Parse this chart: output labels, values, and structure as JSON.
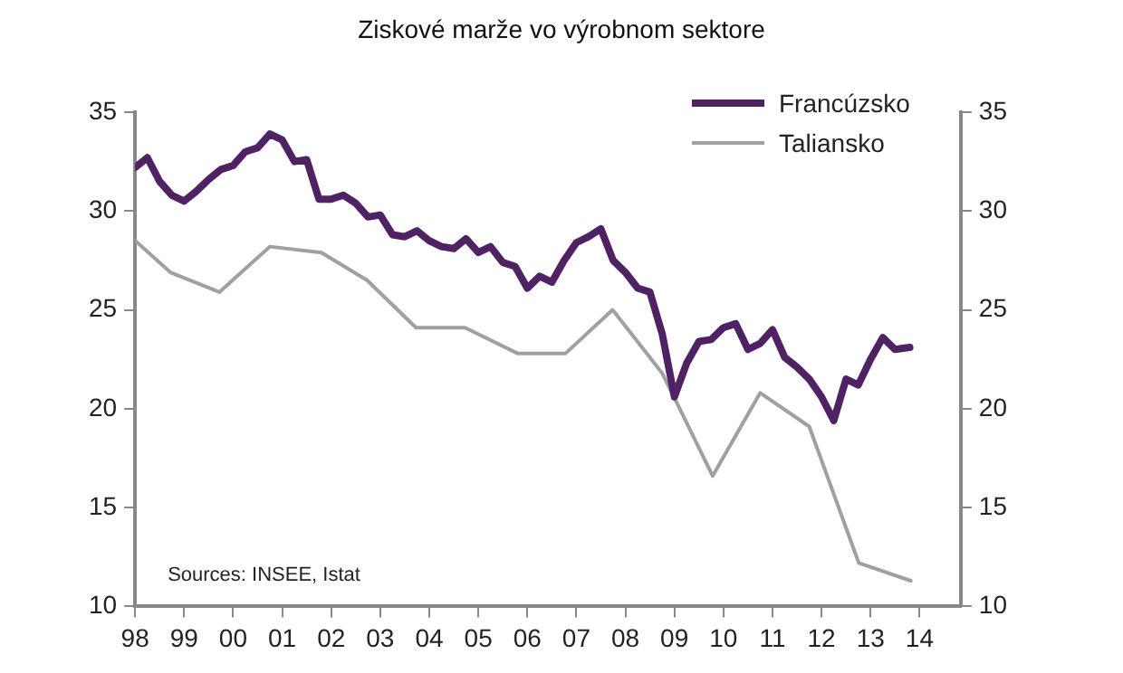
{
  "chart_data": {
    "type": "line",
    "title": "Ziskové marže vo výrobnom sektore",
    "annotations": [
      "Sources: INSEE, Istat"
    ],
    "legend": "top right",
    "grid": false,
    "marker": "none",
    "line_style": "solid",
    "xlim": [
      1998,
      2014.84
    ],
    "xticks": [
      {
        "value": 1998,
        "label": "98"
      },
      {
        "value": 1999,
        "label": "99"
      },
      {
        "value": 2000,
        "label": "00"
      },
      {
        "value": 2001,
        "label": "01"
      },
      {
        "value": 2002,
        "label": "02"
      },
      {
        "value": 2003,
        "label": "03"
      },
      {
        "value": 2004,
        "label": "04"
      },
      {
        "value": 2005,
        "label": "05"
      },
      {
        "value": 2006,
        "label": "06"
      },
      {
        "value": 2007,
        "label": "07"
      },
      {
        "value": 2008,
        "label": "08"
      },
      {
        "value": 2009,
        "label": "09"
      },
      {
        "value": 2010,
        "label": "10"
      },
      {
        "value": 2011,
        "label": "11"
      },
      {
        "value": 2012,
        "label": "12"
      },
      {
        "value": 2013,
        "label": "13"
      },
      {
        "value": 2014,
        "label": "14"
      }
    ],
    "ylim": [
      10,
      35
    ],
    "yticks": [
      10,
      15,
      20,
      25,
      30,
      35
    ],
    "y2lim": [
      10,
      35
    ],
    "y2ticks": [
      10,
      15,
      20,
      25,
      30,
      35
    ],
    "series": [
      {
        "name": "Francúzsko",
        "color": "#4f2263",
        "x": [
          1998,
          1998.25,
          1998.5,
          1998.75,
          1999,
          1999.25,
          1999.5,
          1999.75,
          2000,
          2000.25,
          2000.5,
          2000.75,
          2001,
          2001.25,
          2001.5,
          2001.75,
          2002,
          2002.25,
          2002.5,
          2002.75,
          2003,
          2003.25,
          2003.5,
          2003.75,
          2004,
          2004.25,
          2004.5,
          2004.75,
          2005,
          2005.25,
          2005.5,
          2005.75,
          2006,
          2006.25,
          2006.5,
          2006.75,
          2007,
          2007.25,
          2007.5,
          2007.75,
          2008,
          2008.25,
          2008.5,
          2008.75,
          2009,
          2009.25,
          2009.5,
          2009.75,
          2010,
          2010.25,
          2010.5,
          2010.75,
          2011,
          2011.25,
          2011.5,
          2011.75,
          2012,
          2012.25,
          2012.5,
          2012.75,
          2013,
          2013.25,
          2013.5,
          2013.8
        ],
        "values": [
          32.2,
          32.7,
          31.5,
          30.8,
          30.5,
          31.0,
          31.6,
          32.1,
          32.3,
          33.0,
          33.2,
          33.9,
          33.6,
          32.5,
          32.6,
          30.6,
          30.6,
          30.8,
          30.4,
          29.7,
          29.8,
          28.8,
          28.7,
          29.0,
          28.5,
          28.2,
          28.1,
          28.6,
          27.9,
          28.2,
          27.4,
          27.2,
          26.1,
          26.7,
          26.4,
          27.5,
          28.4,
          28.7,
          29.1,
          27.5,
          26.9,
          26.1,
          25.9,
          23.8,
          20.6,
          22.3,
          23.4,
          23.5,
          24.1,
          24.3,
          23.0,
          23.3,
          24.0,
          22.6,
          22.1,
          21.5,
          20.6,
          19.4,
          21.5,
          21.2,
          22.5,
          23.6,
          23.0,
          23.1
        ]
      },
      {
        "name": "Taliansko",
        "color": "#a0a0a0",
        "x": [
          1998,
          1998.72,
          1999.72,
          2000.75,
          2001.8,
          2002.73,
          2003.73,
          2004.73,
          2005.8,
          2006.78,
          2007.74,
          2008.75,
          2009.05,
          2009.78,
          2010.75,
          2011.75,
          2012.76,
          2013.82
        ],
        "values": [
          28.5,
          26.9,
          25.9,
          28.2,
          27.9,
          26.5,
          24.1,
          24.1,
          22.8,
          22.8,
          25.0,
          21.8,
          20.3,
          16.6,
          20.8,
          19.1,
          12.2,
          11.3
        ]
      }
    ]
  }
}
